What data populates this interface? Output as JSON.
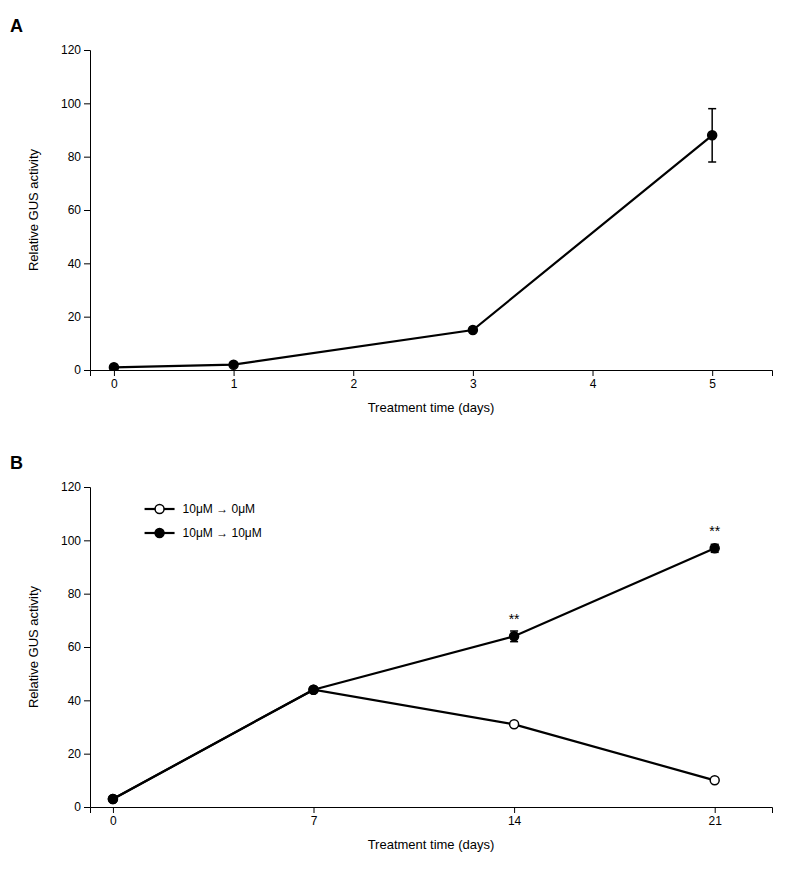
{
  "chart_data": [
    {
      "type": "line",
      "title": "A",
      "x": [
        0,
        1,
        3,
        5
      ],
      "series": [
        {
          "color": "#000000",
          "marker": "circle",
          "values": [
            1,
            2,
            15,
            88
          ],
          "error": [
            0,
            0,
            0,
            10
          ]
        }
      ],
      "xlim": [
        -0.2,
        5.5
      ],
      "ylim": [
        0,
        120
      ],
      "xticks": [
        0,
        1,
        2,
        3,
        4,
        5
      ],
      "yticks": [
        0,
        20,
        40,
        60,
        80,
        100,
        120
      ],
      "xlabel": "Treatment time (days)",
      "ylabel": "Relative GUS activity",
      "grid": false
    },
    {
      "type": "line",
      "title": "B",
      "x": [
        0,
        7,
        14,
        21
      ],
      "series": [
        {
          "name": "10μM → 0μM",
          "color": "#000000",
          "marker": "open-circle",
          "values": [
            3,
            44,
            31,
            10
          ]
        },
        {
          "name": "10μM → 10μM",
          "color": "#000000",
          "marker": "circle",
          "values": [
            3,
            44,
            64,
            97
          ],
          "error": [
            0,
            0,
            2,
            1.5
          ]
        }
      ],
      "annotations": [
        {
          "text": "**",
          "x": 14,
          "y": 64
        },
        {
          "text": "**",
          "x": 21,
          "y": 97
        }
      ],
      "xlim": [
        -0.8,
        23
      ],
      "ylim": [
        0,
        120
      ],
      "xticks": [
        0,
        7,
        14,
        21
      ],
      "yticks": [
        0,
        20,
        40,
        60,
        80,
        100,
        120
      ],
      "xlabel": "Treatment time (days)",
      "ylabel": "Relative GUS activity",
      "legend": "upper left",
      "grid": false
    }
  ]
}
